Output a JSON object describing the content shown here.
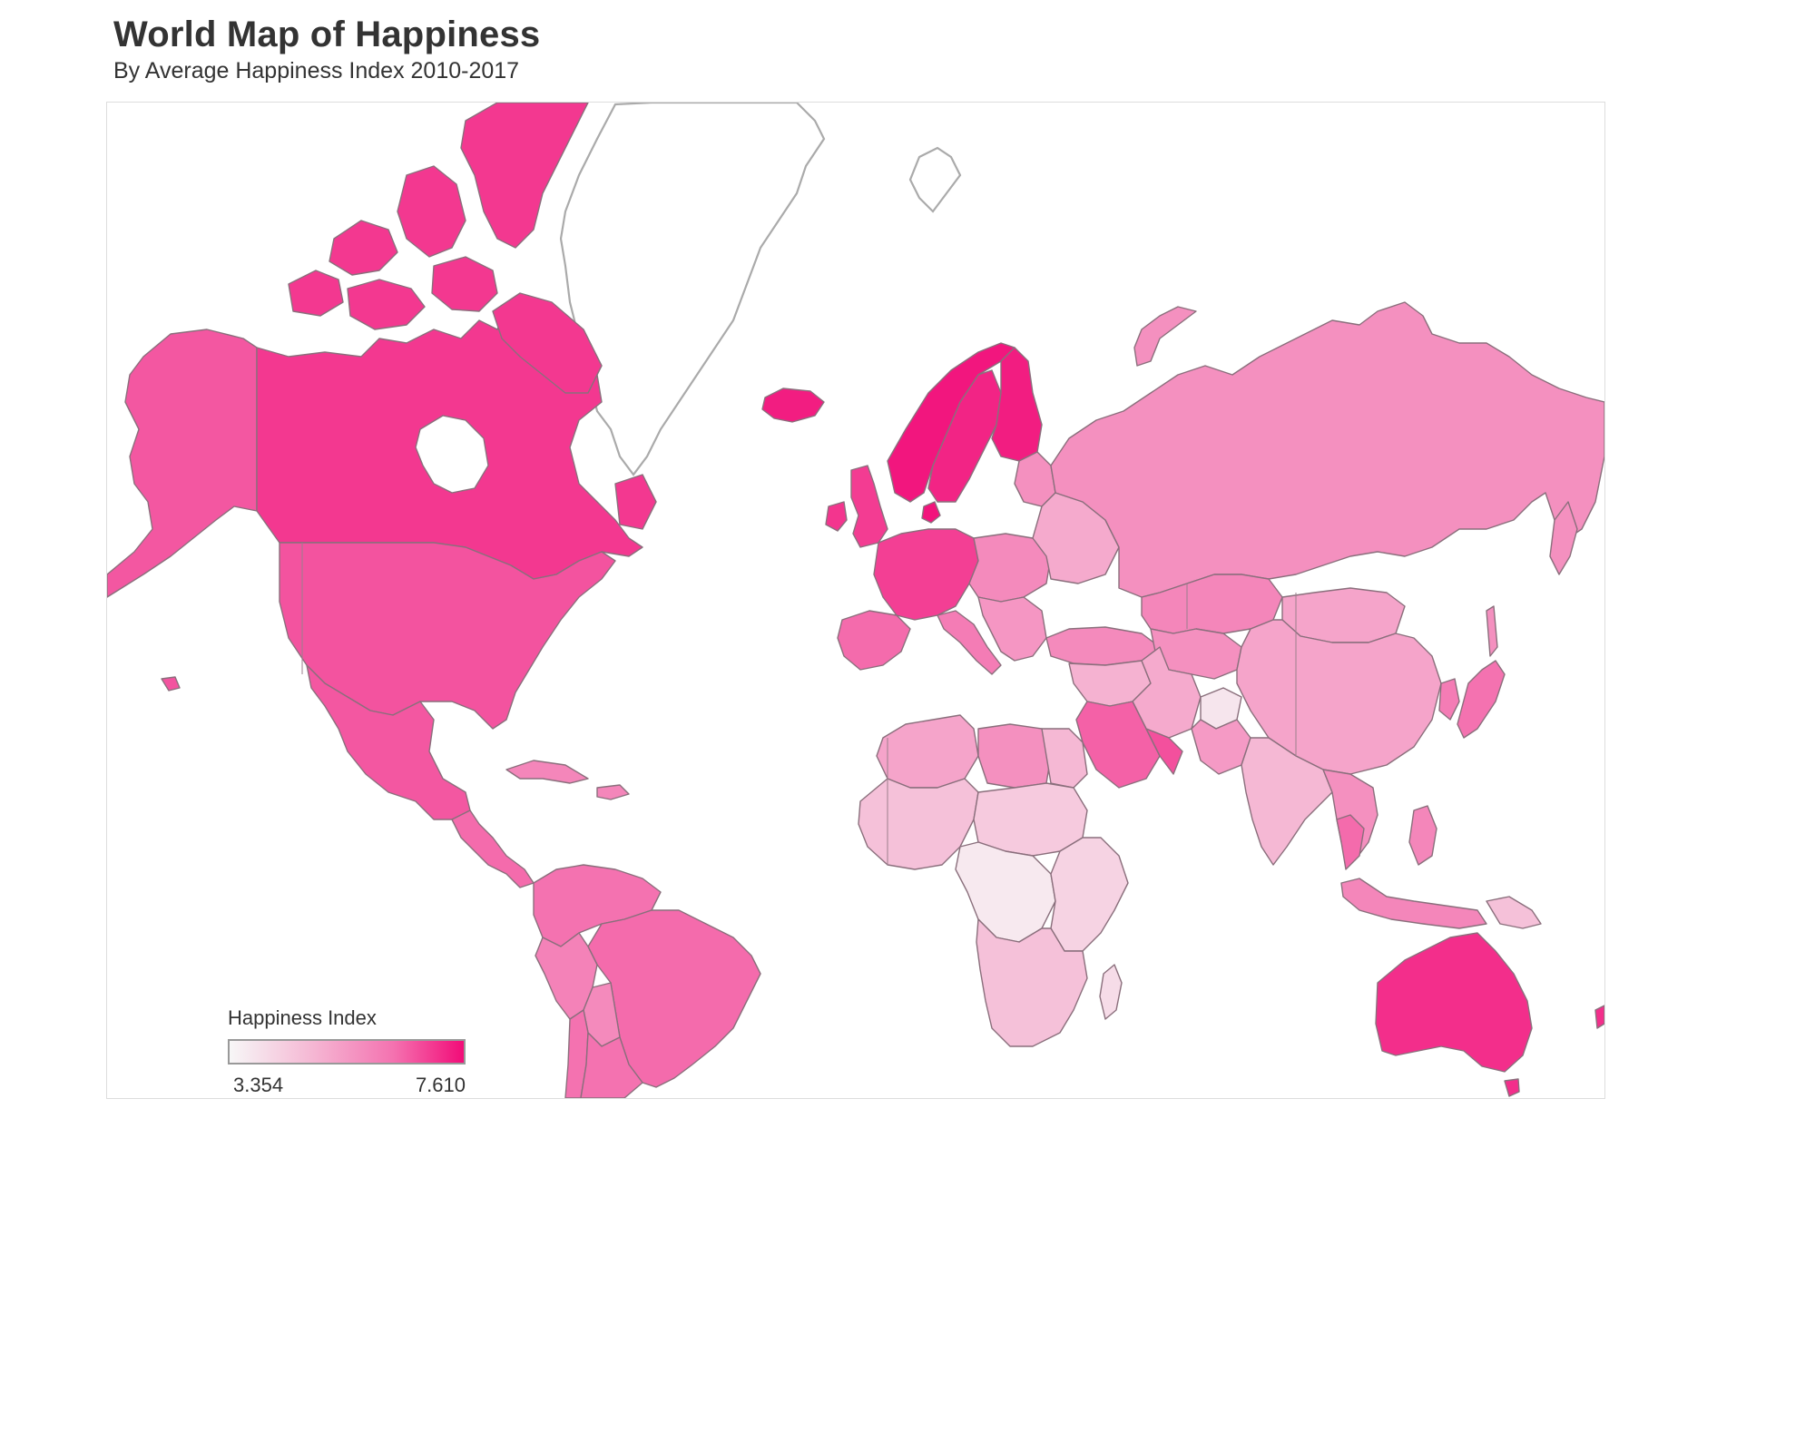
{
  "header": {
    "title": "World Map of Happiness",
    "subtitle": "By Average Happiness Index 2010-2017"
  },
  "legend": {
    "title": "Happiness Index",
    "min_label": "3.354",
    "max_label": "7.610",
    "min": 3.354,
    "max": 7.61,
    "color_low": "#f7f7f7",
    "color_high": "#f20c78"
  },
  "map": {
    "projection": "mercator",
    "stroke_color": "#8a6f7c",
    "no_data_outline_color": "#aaaaaa",
    "regions": [
      {
        "name": "Canada",
        "level": 0.87
      },
      {
        "name": "Alaska",
        "level": 0.78
      },
      {
        "name": "United States",
        "level": 0.79
      },
      {
        "name": "Mexico",
        "level": 0.78
      },
      {
        "name": "Central America",
        "level": 0.72
      },
      {
        "name": "Caribbean",
        "level": 0.6
      },
      {
        "name": "Colombia and Venezuela",
        "level": 0.7
      },
      {
        "name": "Brazil",
        "level": 0.72
      },
      {
        "name": "Peru",
        "level": 0.62
      },
      {
        "name": "Bolivia",
        "level": 0.58
      },
      {
        "name": "Chile",
        "level": 0.7
      },
      {
        "name": "Argentina",
        "level": 0.7
      },
      {
        "name": "Iceland",
        "level": 0.95
      },
      {
        "name": "Norway",
        "level": 0.97
      },
      {
        "name": "Sweden",
        "level": 0.93
      },
      {
        "name": "Finland",
        "level": 0.95
      },
      {
        "name": "Denmark",
        "level": 0.98
      },
      {
        "name": "United Kingdom",
        "level": 0.86
      },
      {
        "name": "Ireland",
        "level": 0.88
      },
      {
        "name": "Western Europe",
        "level": 0.85
      },
      {
        "name": "Iberia",
        "level": 0.72
      },
      {
        "name": "Italy",
        "level": 0.65
      },
      {
        "name": "Eastern Europe",
        "level": 0.58
      },
      {
        "name": "Balkans",
        "level": 0.52
      },
      {
        "name": "Baltics",
        "level": 0.55
      },
      {
        "name": "Ukraine and Belarus",
        "level": 0.42
      },
      {
        "name": "Turkey",
        "level": 0.58
      },
      {
        "name": "Russia",
        "level": 0.55
      },
      {
        "name": "Kazakhstan",
        "level": 0.6
      },
      {
        "name": "Central Asia",
        "level": 0.55
      },
      {
        "name": "Mongolia",
        "level": 0.45
      },
      {
        "name": "China",
        "level": 0.45
      },
      {
        "name": "Korea",
        "level": 0.65
      },
      {
        "name": "Japan",
        "level": 0.7
      },
      {
        "name": "Middle East",
        "level": 0.38
      },
      {
        "name": "Iran",
        "level": 0.42
      },
      {
        "name": "Saudi Arabia",
        "level": 0.75
      },
      {
        "name": "Gulf States",
        "level": 0.8
      },
      {
        "name": "Afghanistan",
        "level": 0.1
      },
      {
        "name": "Pakistan",
        "level": 0.5
      },
      {
        "name": "India",
        "level": 0.35
      },
      {
        "name": "Southeast Asia",
        "level": 0.55
      },
      {
        "name": "Thailand",
        "level": 0.72
      },
      {
        "name": "Indonesia",
        "level": 0.6
      },
      {
        "name": "Philippines",
        "level": 0.6
      },
      {
        "name": "Papua New Guinea",
        "level": 0.3
      },
      {
        "name": "Australia",
        "level": 0.9
      },
      {
        "name": "New Zealand",
        "level": 0.9
      },
      {
        "name": "North Africa",
        "level": 0.45
      },
      {
        "name": "Libya",
        "level": 0.55
      },
      {
        "name": "Egypt",
        "level": 0.35
      },
      {
        "name": "West Africa",
        "level": 0.3
      },
      {
        "name": "Sahel",
        "level": 0.25
      },
      {
        "name": "Central Africa",
        "level": 0.08
      },
      {
        "name": "East Africa",
        "level": 0.2
      },
      {
        "name": "Southern Africa",
        "level": 0.3
      },
      {
        "name": "Madagascar",
        "level": 0.15
      },
      {
        "name": "Greenland",
        "level": null
      }
    ]
  }
}
